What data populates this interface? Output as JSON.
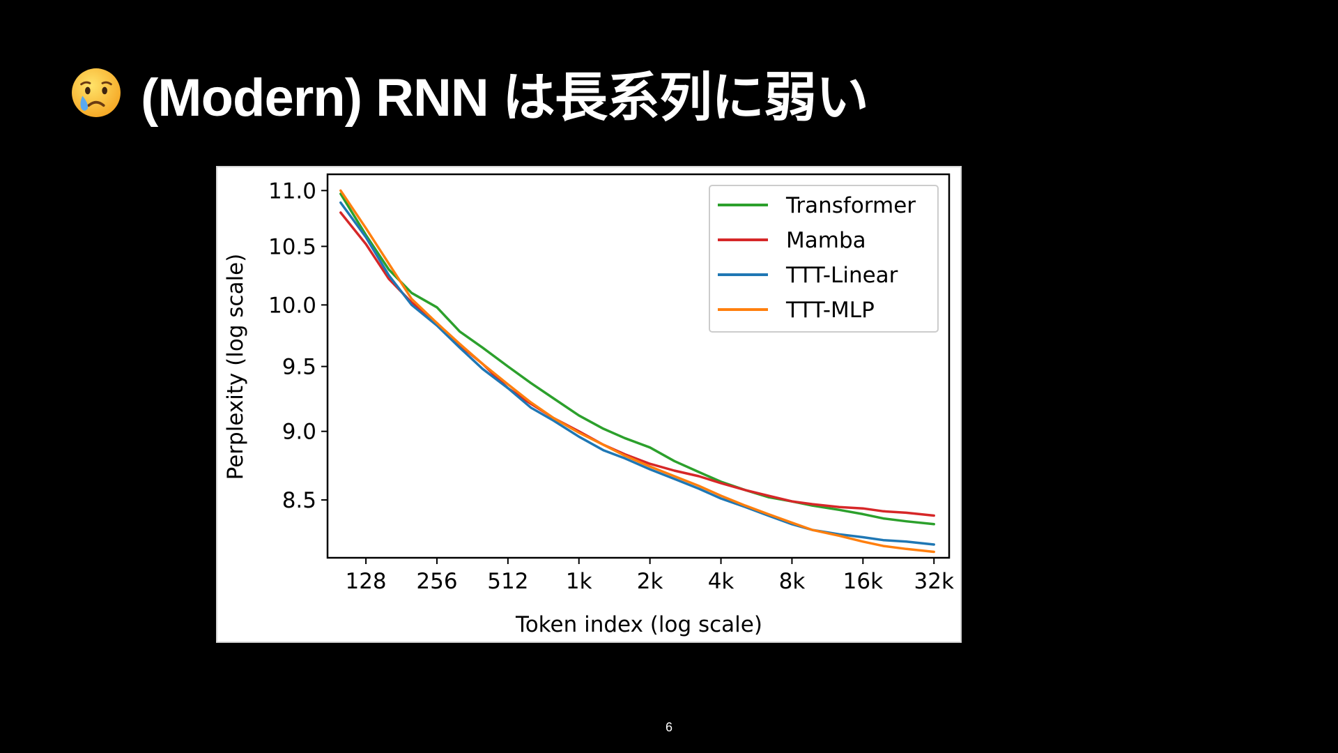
{
  "slide": {
    "title": "(Modern) RNN は長系列に弱い",
    "title_icon": "crying-face-emoji",
    "page_number": "6"
  },
  "chart_data": {
    "type": "line",
    "xlabel": "Token index (log scale)",
    "ylabel": "Perplexity (log scale)",
    "x_scale": "log2",
    "y_scale": "log",
    "x_ticks": [
      128,
      256,
      512,
      1024,
      2048,
      4096,
      8192,
      16384,
      32768
    ],
    "x_tick_labels": [
      "128",
      "256",
      "512",
      "1k",
      "2k",
      "4k",
      "8k",
      "16k",
      "32k"
    ],
    "y_ticks": [
      8.5,
      9.0,
      9.5,
      10.0,
      10.5,
      11.0
    ],
    "y_tick_labels": [
      "8.5",
      "9.0",
      "9.5",
      "10.0",
      "10.5",
      "11.0"
    ],
    "xlim": [
      88,
      38000
    ],
    "ylim": [
      8.1,
      11.15
    ],
    "legend_position": "top-right",
    "grid": false,
    "series": [
      {
        "name": "Transformer",
        "color": "#2ca02c",
        "points": [
          [
            100,
            10.97
          ],
          [
            128,
            10.6
          ],
          [
            160,
            10.3
          ],
          [
            200,
            10.1
          ],
          [
            256,
            9.98
          ],
          [
            320,
            9.78
          ],
          [
            400,
            9.65
          ],
          [
            512,
            9.5
          ],
          [
            640,
            9.37
          ],
          [
            800,
            9.25
          ],
          [
            1024,
            9.12
          ],
          [
            1300,
            9.02
          ],
          [
            1600,
            8.95
          ],
          [
            2048,
            8.88
          ],
          [
            2600,
            8.78
          ],
          [
            3300,
            8.7
          ],
          [
            4096,
            8.63
          ],
          [
            5200,
            8.57
          ],
          [
            6500,
            8.52
          ],
          [
            8192,
            8.49
          ],
          [
            10000,
            8.46
          ],
          [
            13000,
            8.43
          ],
          [
            16384,
            8.4
          ],
          [
            20000,
            8.37
          ],
          [
            25000,
            8.35
          ],
          [
            32768,
            8.33
          ]
        ]
      },
      {
        "name": "Mamba",
        "color": "#d62728",
        "points": [
          [
            100,
            10.8
          ],
          [
            128,
            10.52
          ],
          [
            160,
            10.22
          ],
          [
            200,
            10.02
          ],
          [
            256,
            9.85
          ],
          [
            320,
            9.67
          ],
          [
            400,
            9.52
          ],
          [
            512,
            9.33
          ],
          [
            640,
            9.21
          ],
          [
            800,
            9.1
          ],
          [
            1024,
            9.0
          ],
          [
            1300,
            8.9
          ],
          [
            1600,
            8.83
          ],
          [
            2048,
            8.76
          ],
          [
            2600,
            8.71
          ],
          [
            3300,
            8.67
          ],
          [
            4096,
            8.62
          ],
          [
            5200,
            8.57
          ],
          [
            6500,
            8.53
          ],
          [
            8192,
            8.49
          ],
          [
            10000,
            8.47
          ],
          [
            13000,
            8.45
          ],
          [
            16384,
            8.44
          ],
          [
            20000,
            8.42
          ],
          [
            25000,
            8.41
          ],
          [
            32768,
            8.39
          ]
        ]
      },
      {
        "name": "TTT-Linear",
        "color": "#1f77b4",
        "points": [
          [
            100,
            10.89
          ],
          [
            128,
            10.58
          ],
          [
            160,
            10.25
          ],
          [
            200,
            10.0
          ],
          [
            256,
            9.83
          ],
          [
            320,
            9.65
          ],
          [
            400,
            9.48
          ],
          [
            512,
            9.33
          ],
          [
            640,
            9.18
          ],
          [
            800,
            9.08
          ],
          [
            1024,
            8.96
          ],
          [
            1300,
            8.86
          ],
          [
            1600,
            8.8
          ],
          [
            2048,
            8.72
          ],
          [
            2600,
            8.65
          ],
          [
            3300,
            8.58
          ],
          [
            4096,
            8.51
          ],
          [
            5200,
            8.45
          ],
          [
            6500,
            8.39
          ],
          [
            8192,
            8.33
          ],
          [
            10000,
            8.29
          ],
          [
            13000,
            8.26
          ],
          [
            16384,
            8.24
          ],
          [
            20000,
            8.22
          ],
          [
            25000,
            8.21
          ],
          [
            32768,
            8.19
          ]
        ]
      },
      {
        "name": "TTT-MLP",
        "color": "#ff7f0e",
        "points": [
          [
            100,
            11.0
          ],
          [
            128,
            10.66
          ],
          [
            160,
            10.35
          ],
          [
            200,
            10.05
          ],
          [
            256,
            9.85
          ],
          [
            320,
            9.68
          ],
          [
            400,
            9.52
          ],
          [
            512,
            9.36
          ],
          [
            640,
            9.22
          ],
          [
            800,
            9.1
          ],
          [
            1024,
            8.99
          ],
          [
            1300,
            8.9
          ],
          [
            1600,
            8.82
          ],
          [
            2048,
            8.74
          ],
          [
            2600,
            8.67
          ],
          [
            3300,
            8.6
          ],
          [
            4096,
            8.53
          ],
          [
            5200,
            8.46
          ],
          [
            6500,
            8.4
          ],
          [
            8192,
            8.34
          ],
          [
            10000,
            8.29
          ],
          [
            13000,
            8.25
          ],
          [
            16384,
            8.21
          ],
          [
            20000,
            8.18
          ],
          [
            25000,
            8.16
          ],
          [
            32768,
            8.14
          ]
        ]
      }
    ]
  }
}
